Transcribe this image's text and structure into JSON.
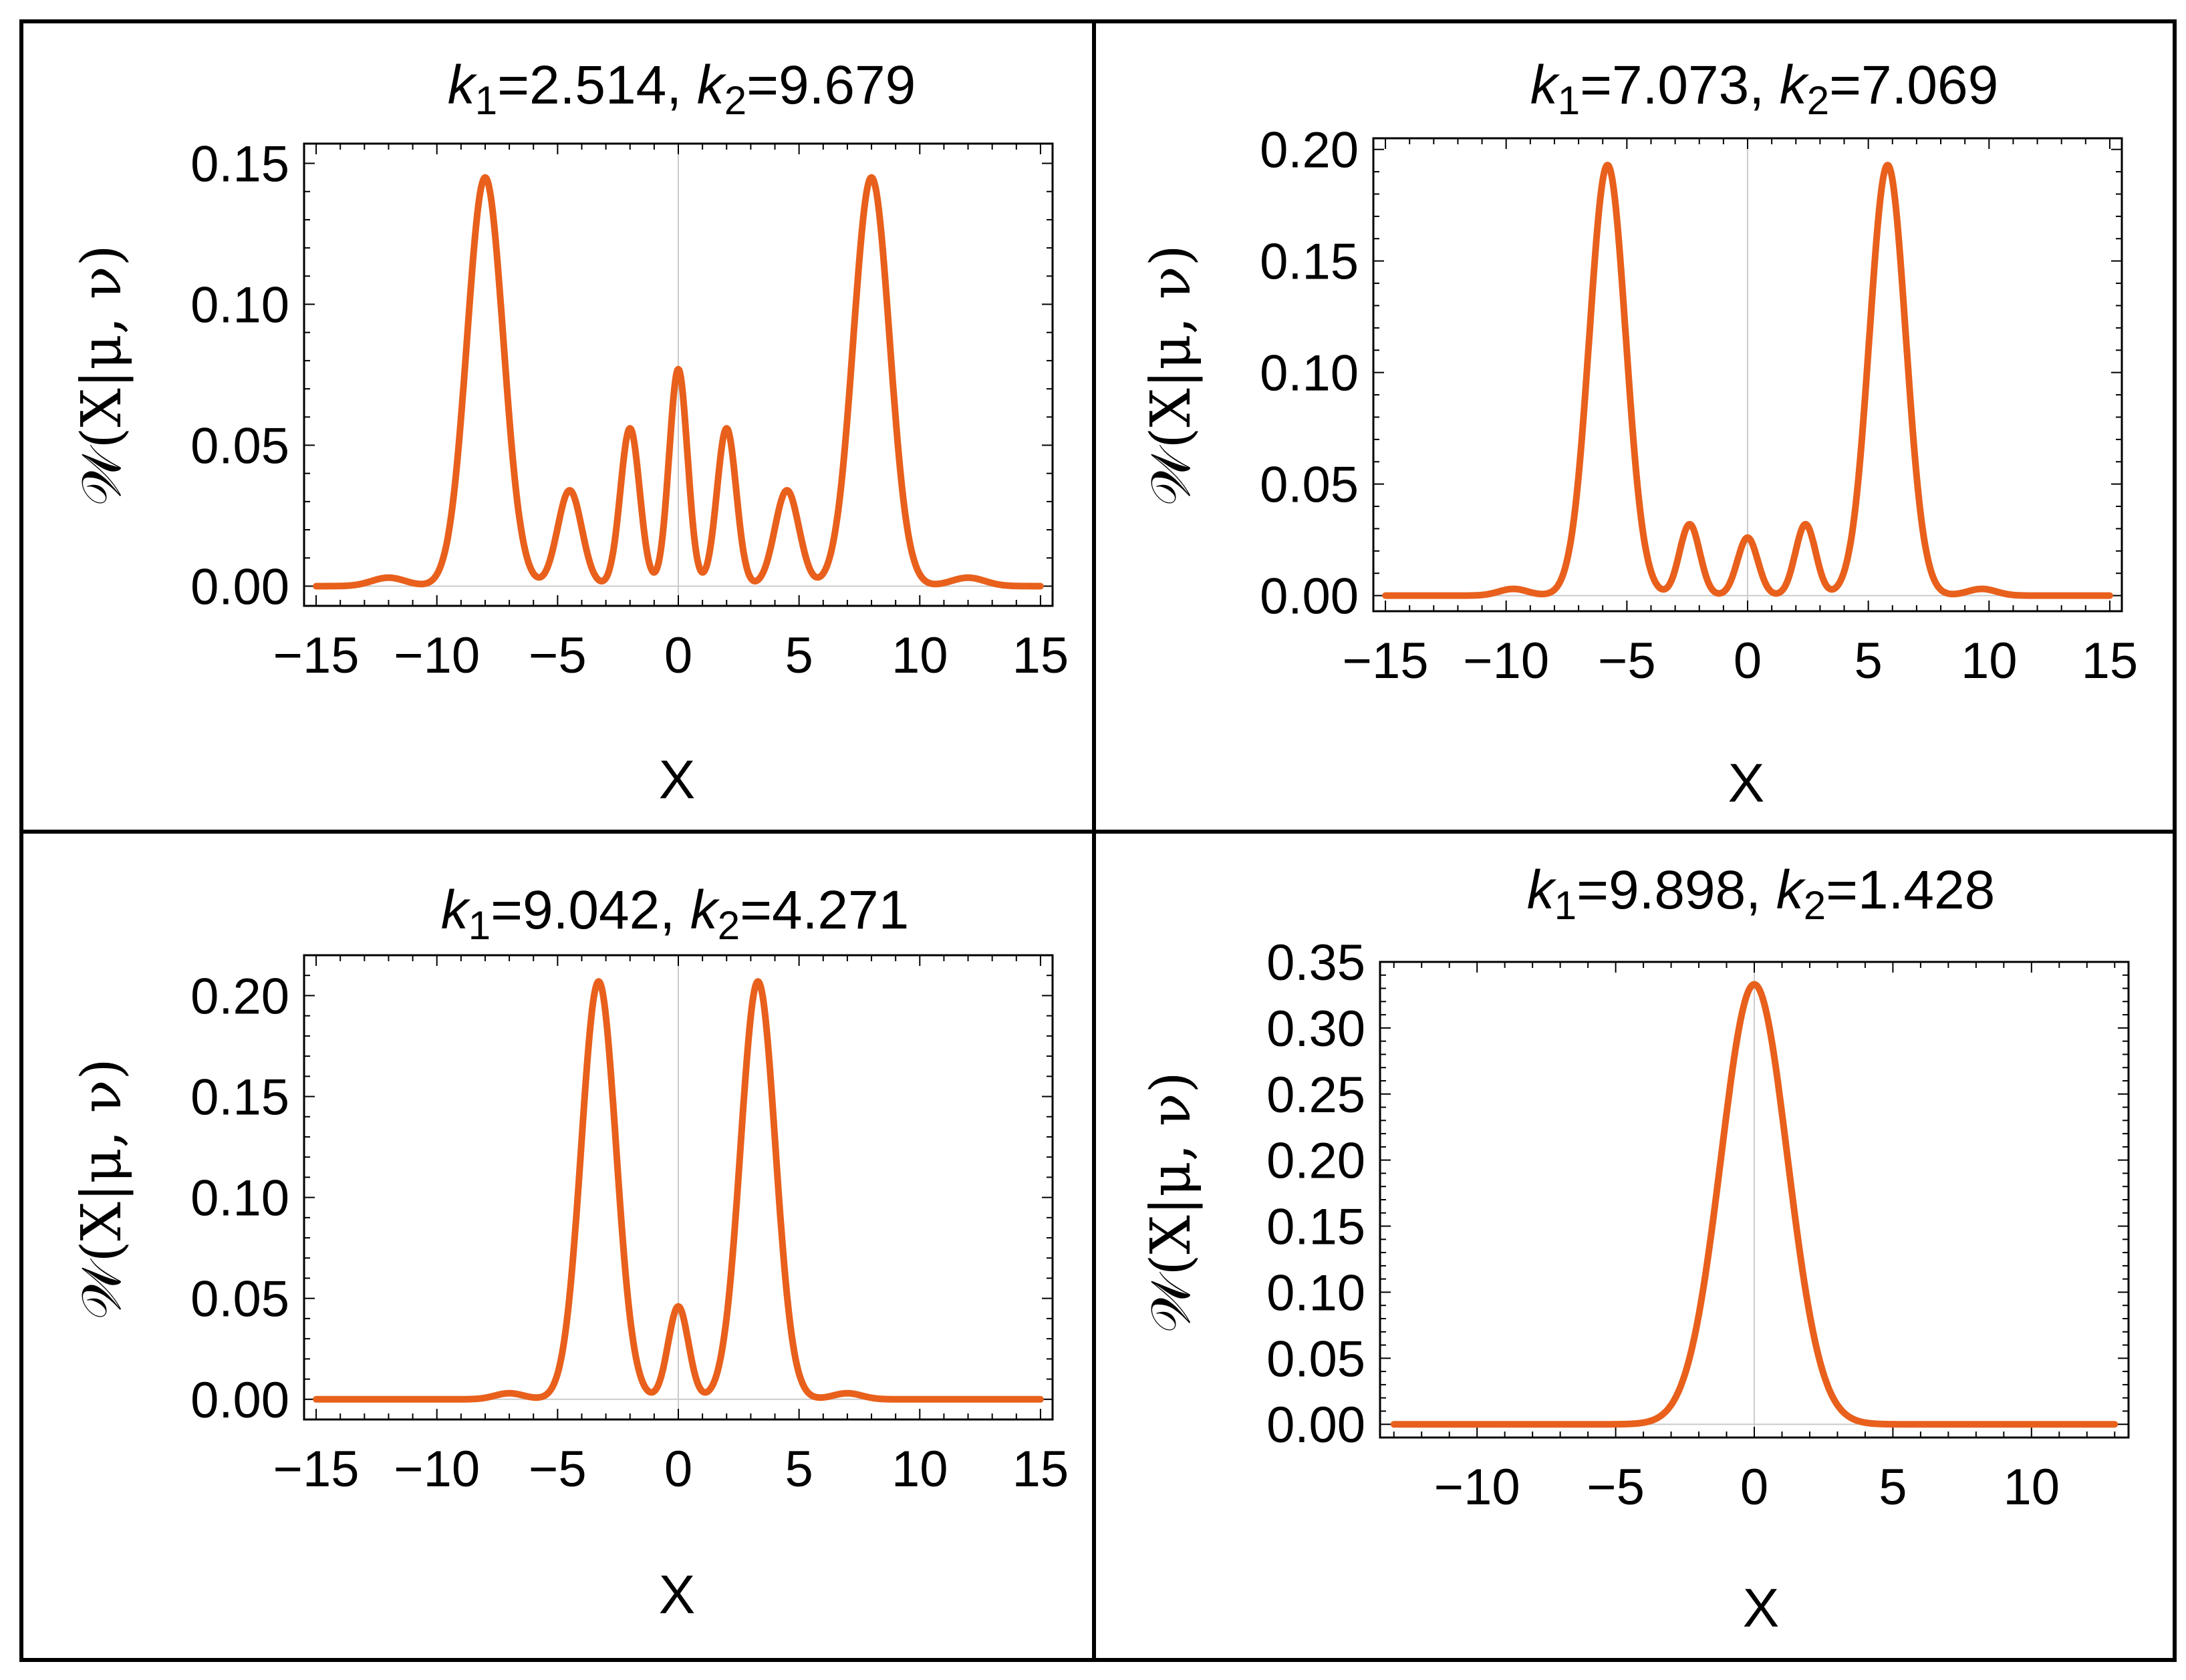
{
  "chart_data": [
    {
      "type": "line",
      "title": "k1=2.514, k2=9.679",
      "title_parts": {
        "k1_sym": "k",
        "k1_sub": "1",
        "k1_val": "=2.514, ",
        "k2_sym": "k",
        "k2_sub": "2",
        "k2_val": "=9.679"
      },
      "xlabel": "X",
      "ylabel": "𝒲(X|μ, ν)",
      "xlim": [
        -15.5,
        15.5
      ],
      "ylim": [
        -0.007,
        0.157
      ],
      "xticks": [
        -15,
        -10,
        -5,
        0,
        5,
        10,
        15
      ],
      "xtick_labels": [
        "−15",
        "−10",
        "−5",
        "0",
        "5",
        "10",
        "15"
      ],
      "yticks": [
        0,
        0.05,
        0.1,
        0.15
      ],
      "ytick_labels": [
        "0.00",
        "0.05",
        "0.10",
        "0.15"
      ],
      "color": "#e8601c",
      "x_range": [
        -15,
        15
      ],
      "components": [
        [
          -8,
          0.145,
          0.75
        ],
        [
          8,
          0.145,
          0.75
        ],
        [
          0,
          0.077,
          0.38
        ],
        [
          -2,
          0.056,
          0.4
        ],
        [
          2,
          0.056,
          0.4
        ],
        [
          -4.5,
          0.034,
          0.5
        ],
        [
          4.5,
          0.034,
          0.5
        ],
        [
          -12,
          0.003,
          0.7
        ],
        [
          12,
          0.003,
          0.7
        ]
      ]
    },
    {
      "type": "line",
      "title": "k1=7.073, k2=7.069",
      "title_parts": {
        "k1_sym": "k",
        "k1_sub": "1",
        "k1_val": "=7.073, ",
        "k2_sym": "k",
        "k2_sub": "2",
        "k2_val": "=7.069"
      },
      "xlabel": "X",
      "ylabel": "𝒲(X|μ, ν)",
      "xlim": [
        -15.5,
        15.5
      ],
      "ylim": [
        -0.007,
        0.205
      ],
      "xticks": [
        -15,
        -10,
        -5,
        0,
        5,
        10,
        15
      ],
      "xtick_labels": [
        "−15",
        "−10",
        "−5",
        "0",
        "5",
        "10",
        "15"
      ],
      "yticks": [
        0,
        0.05,
        0.1,
        0.15,
        0.2
      ],
      "ytick_labels": [
        "0.00",
        "0.05",
        "0.10",
        "0.15",
        "0.20"
      ],
      "color": "#e8601c",
      "x_range": [
        -15,
        15
      ],
      "components": [
        [
          -5.8,
          0.193,
          0.75
        ],
        [
          5.8,
          0.193,
          0.75
        ],
        [
          0,
          0.026,
          0.42
        ],
        [
          -2.4,
          0.032,
          0.42
        ],
        [
          2.4,
          0.032,
          0.42
        ],
        [
          -9.7,
          0.003,
          0.6
        ],
        [
          9.7,
          0.003,
          0.6
        ]
      ]
    },
    {
      "type": "line",
      "title": "k1=9.042, k2=4.271",
      "title_parts": {
        "k1_sym": "k",
        "k1_sub": "1",
        "k1_val": "=9.042, ",
        "k2_sym": "k",
        "k2_sub": "2",
        "k2_val": "=4.271"
      },
      "xlabel": "X",
      "ylabel": "𝒲(X|μ, ν)",
      "xlim": [
        -15.5,
        15.5
      ],
      "ylim": [
        -0.01,
        0.22
      ],
      "xticks": [
        -15,
        -10,
        -5,
        0,
        5,
        10,
        15
      ],
      "xtick_labels": [
        "−15",
        "−10",
        "−5",
        "0",
        "5",
        "10",
        "15"
      ],
      "yticks": [
        0,
        0.05,
        0.1,
        0.15,
        0.2
      ],
      "ytick_labels": [
        "0.00",
        "0.05",
        "0.10",
        "0.15",
        "0.20"
      ],
      "color": "#e8601c",
      "x_range": [
        -15,
        15
      ],
      "components": [
        [
          -3.3,
          0.207,
          0.72
        ],
        [
          3.3,
          0.207,
          0.72
        ],
        [
          0,
          0.046,
          0.42
        ],
        [
          -7,
          0.003,
          0.6
        ],
        [
          7,
          0.003,
          0.6
        ]
      ]
    },
    {
      "type": "line",
      "title": "k1=9.898, k2=1.428",
      "title_parts": {
        "k1_sym": "k",
        "k1_sub": "1",
        "k1_val": "=9.898, ",
        "k2_sym": "k",
        "k2_sub": "2",
        "k2_val": "=1.428"
      },
      "xlabel": "X",
      "ylabel": "𝒲(X|μ, ν)",
      "xlim": [
        -13.5,
        13.5
      ],
      "ylim": [
        -0.01,
        0.35
      ],
      "xticks": [
        -10,
        -5,
        0,
        5,
        10
      ],
      "xtick_labels": [
        "−10",
        "−5",
        "0",
        "5",
        "10"
      ],
      "yticks": [
        0,
        0.05,
        0.1,
        0.15,
        0.2,
        0.25,
        0.3,
        0.35
      ],
      "ytick_labels": [
        "0.00",
        "0.05",
        "0.10",
        "0.15",
        "0.20",
        "0.25",
        "0.30",
        "0.35"
      ],
      "color": "#e8601c",
      "x_range": [
        -13,
        13
      ],
      "components": [
        [
          0,
          0.333,
          1.2
        ]
      ]
    }
  ]
}
